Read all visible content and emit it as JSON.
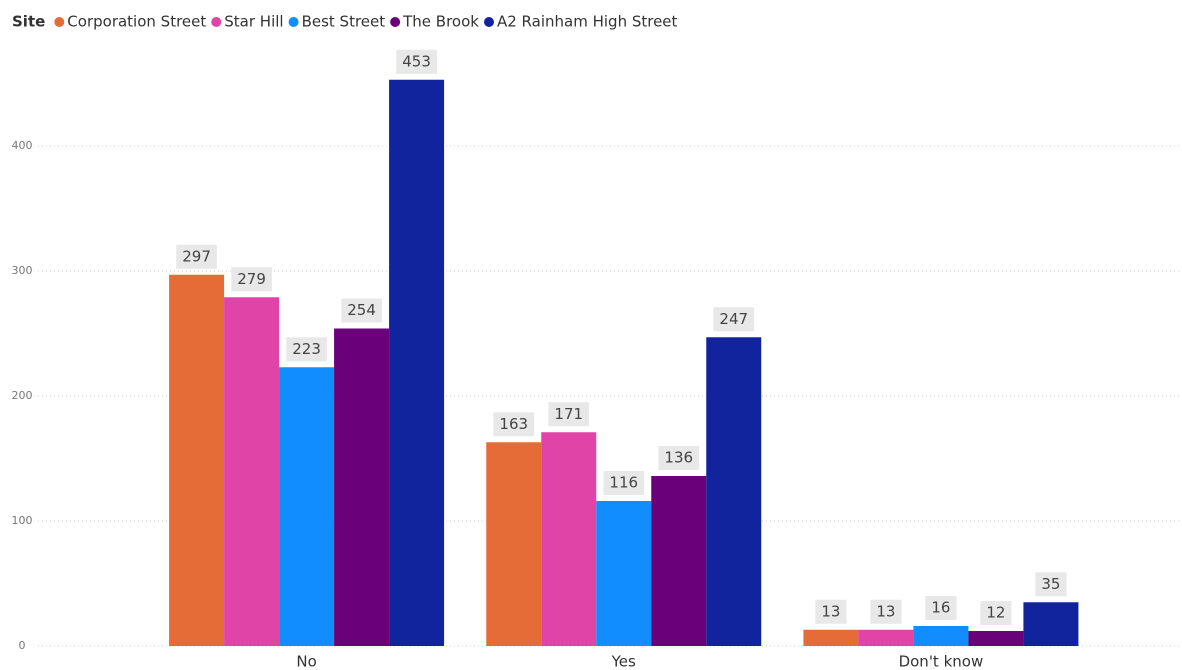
{
  "chart_data": {
    "type": "bar",
    "legend_title": "Site",
    "categories": [
      "No",
      "Yes",
      "Don't know"
    ],
    "series": [
      {
        "name": "Corporation Street",
        "color": "#E66C37",
        "values": [
          297,
          163,
          13
        ]
      },
      {
        "name": "Star Hill",
        "color": "#E044A7",
        "values": [
          279,
          171,
          13
        ]
      },
      {
        "name": "Best Street",
        "color": "#118DFF",
        "values": [
          223,
          116,
          16
        ]
      },
      {
        "name": "The Brook",
        "color": "#6B007B",
        "values": [
          254,
          136,
          12
        ]
      },
      {
        "name": "A2 Rainham High Street",
        "color": "#12239E",
        "values": [
          453,
          247,
          35
        ]
      }
    ],
    "ylim": [
      0,
      470
    ],
    "yticks": [
      0,
      100,
      200,
      300,
      400
    ],
    "grid": true,
    "legend": "top-left"
  }
}
